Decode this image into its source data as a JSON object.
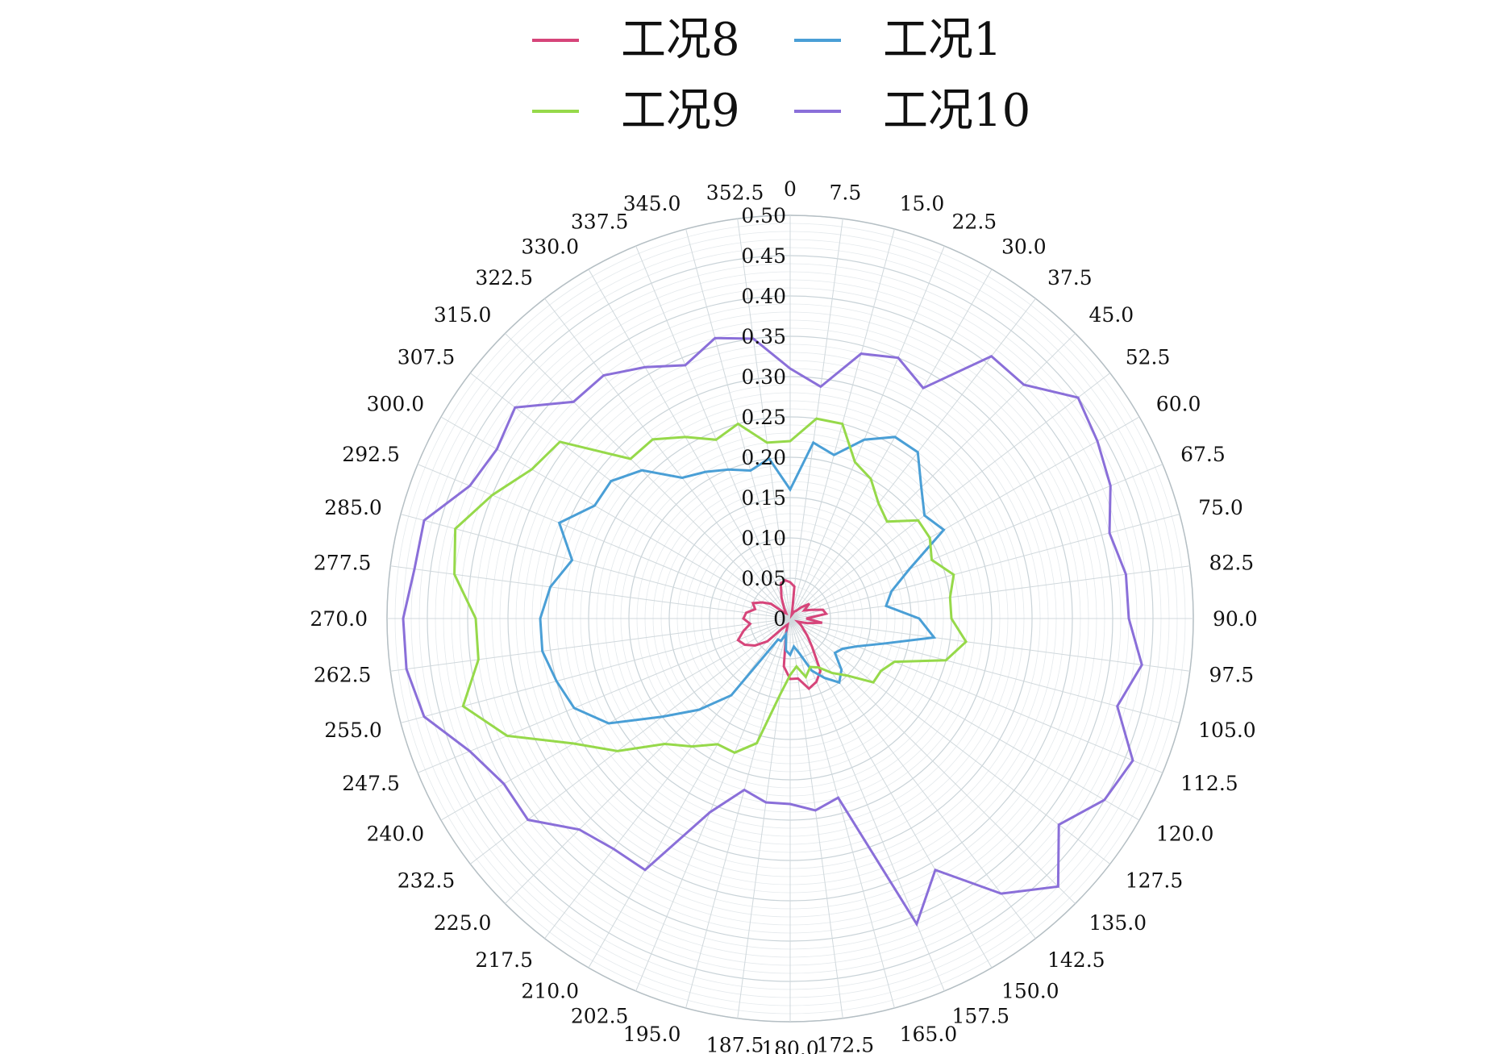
{
  "chart_data": {
    "type": "line",
    "subtype": "polar-radar",
    "title": "",
    "angular_unit": "degrees",
    "angular_ticks": [
      "0",
      "7.5",
      "15.0",
      "22.5",
      "30.0",
      "37.5",
      "45.0",
      "52.5",
      "60.0",
      "67.5",
      "75.0",
      "82.5",
      "90.0",
      "97.5",
      "105.0",
      "112.5",
      "120.0",
      "127.5",
      "135.0",
      "142.5",
      "150.0",
      "157.5",
      "165.0",
      "172.5",
      "180.0",
      "187.5",
      "195.0",
      "202.5",
      "210.0",
      "217.5",
      "225.0",
      "232.5",
      "240.0",
      "247.5",
      "255.0",
      "262.5",
      "270.0",
      "277.5",
      "285.0",
      "292.5",
      "300.0",
      "307.5",
      "315.0",
      "322.5",
      "330.0",
      "337.5",
      "345.0",
      "352.5"
    ],
    "radial_ticks": [
      "0",
      "0.05",
      "0.10",
      "0.15",
      "0.20",
      "0.25",
      "0.30",
      "0.35",
      "0.40",
      "0.45",
      "0.50"
    ],
    "rlim": [
      0,
      0.5
    ],
    "grid": true,
    "legend_position": "top-center",
    "angles": [
      0,
      7.5,
      15,
      22.5,
      30,
      37.5,
      45,
      52.5,
      60,
      67.5,
      75,
      82.5,
      90,
      97.5,
      105,
      112.5,
      120,
      127.5,
      135,
      142.5,
      150,
      157.5,
      165,
      172.5,
      180,
      187.5,
      195,
      202.5,
      210,
      217.5,
      225,
      232.5,
      240,
      247.5,
      255,
      262.5,
      270,
      277.5,
      285,
      292.5,
      300,
      307.5,
      315,
      322.5,
      330,
      337.5,
      345,
      352.5
    ],
    "series": [
      {
        "name": "工况8",
        "color": "#d6457a",
        "values": [
          0.045,
          0.04,
          0.01,
          0.005,
          0.01,
          0.012,
          0.02,
          0.03,
          0.02,
          0.028,
          0.042,
          0.045,
          0.02,
          0.04,
          0.022,
          0.01,
          0.015,
          0.02,
          0.03,
          0.045,
          0.075,
          0.085,
          0.09,
          0.075,
          0.075,
          0.06,
          0.02,
          0.008,
          0.01,
          0.015,
          0.04,
          0.055,
          0.065,
          0.07,
          0.06,
          0.05,
          0.058,
          0.055,
          0.045,
          0.05,
          0.04,
          0.03,
          0.01,
          0.008,
          0.015,
          0.028,
          0.045,
          0.048
        ]
      },
      {
        "name": "工况1",
        "color": "#4a9fd6",
        "values": [
          0.16,
          0.22,
          0.21,
          0.24,
          0.26,
          0.26,
          0.23,
          0.21,
          0.22,
          0.16,
          0.13,
          0.12,
          0.16,
          0.18,
          0.12,
          0.09,
          0.075,
          0.07,
          0.09,
          0.1,
          0.085,
          0.07,
          0.045,
          0.035,
          0.045,
          0.04,
          0.02,
          0.03,
          0.03,
          0.12,
          0.16,
          0.2,
          0.26,
          0.29,
          0.3,
          0.31,
          0.31,
          0.3,
          0.28,
          0.31,
          0.28,
          0.28,
          0.26,
          0.22,
          0.21,
          0.2,
          0.19,
          0.2
        ]
      },
      {
        "name": "工况9",
        "color": "#96d94a",
        "values": [
          0.22,
          0.25,
          0.25,
          0.21,
          0.2,
          0.18,
          0.17,
          0.2,
          0.2,
          0.19,
          0.21,
          0.2,
          0.2,
          0.22,
          0.2,
          0.14,
          0.13,
          0.13,
          0.1,
          0.085,
          0.07,
          0.065,
          0.075,
          0.06,
          0.07,
          0.095,
          0.16,
          0.18,
          0.18,
          0.2,
          0.22,
          0.27,
          0.31,
          0.38,
          0.42,
          0.39,
          0.39,
          0.42,
          0.43,
          0.4,
          0.37,
          0.36,
          0.28,
          0.28,
          0.26,
          0.24,
          0.25,
          0.22
        ]
      },
      {
        "name": "工况10",
        "color": "#8a6fd9",
        "values": [
          0.31,
          0.29,
          0.34,
          0.35,
          0.33,
          0.41,
          0.41,
          0.45,
          0.44,
          0.43,
          0.41,
          0.42,
          0.42,
          0.44,
          0.42,
          0.46,
          0.45,
          0.42,
          0.47,
          0.43,
          0.36,
          0.41,
          0.23,
          0.24,
          0.23,
          0.23,
          0.22,
          0.26,
          0.36,
          0.36,
          0.37,
          0.41,
          0.41,
          0.43,
          0.47,
          0.48,
          0.48,
          0.47,
          0.47,
          0.43,
          0.42,
          0.43,
          0.38,
          0.38,
          0.36,
          0.34,
          0.36,
          0.35
        ]
      }
    ]
  }
}
